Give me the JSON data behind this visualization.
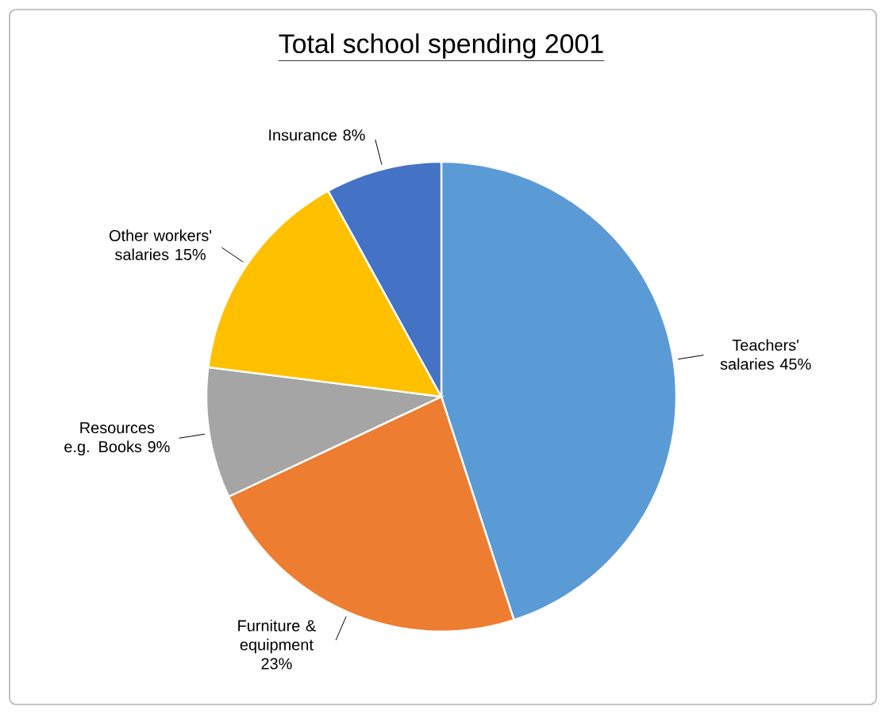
{
  "chart_data": {
    "type": "pie",
    "title": "Total school spending 2001",
    "categories": [
      "Teachers' salaries",
      "Furniture & equipment",
      "Resources e.g. Books",
      "Other workers' salaries",
      "Insurance"
    ],
    "values": [
      45,
      23,
      9,
      15,
      8
    ],
    "value_labels": [
      "45%",
      "23%",
      "9%",
      "15%",
      "8%"
    ],
    "colors": [
      "#5b9bd5",
      "#ed7d31",
      "#a5a5a5",
      "#ffc000",
      "#4472c4"
    ]
  }
}
